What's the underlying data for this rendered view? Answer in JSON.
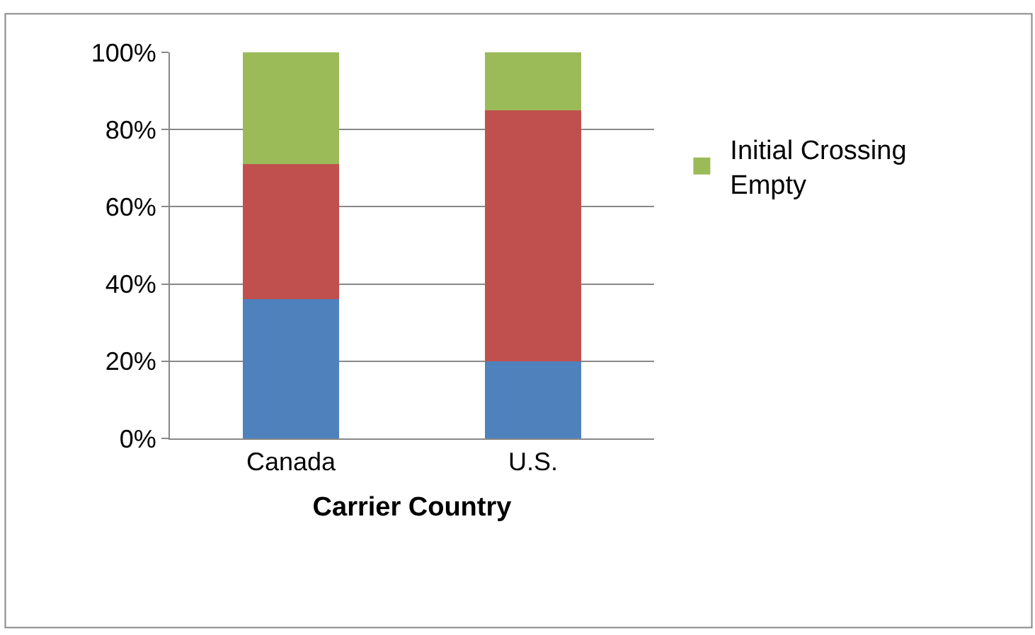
{
  "chart_data": {
    "type": "bar",
    "stacked": true,
    "xlabel": "Carrier Country",
    "categories": [
      "Canada",
      "U.S."
    ],
    "series": [
      {
        "color": "#4f81bd",
        "values": [
          36,
          20
        ]
      },
      {
        "color": "#c0504d",
        "values": [
          35,
          65
        ]
      },
      {
        "name": "Initial Crossing Empty",
        "color": "#9bbb59",
        "values": [
          29,
          15
        ]
      }
    ],
    "ylim": [
      0,
      100
    ],
    "yticks": [
      {
        "value": 0,
        "label": "0%"
      },
      {
        "value": 20,
        "label": "20%"
      },
      {
        "value": 40,
        "label": "40%"
      },
      {
        "value": 60,
        "label": "60%"
      },
      {
        "value": 80,
        "label": "80%"
      },
      {
        "value": 100,
        "label": "100%"
      }
    ],
    "grid": "y",
    "legend": "right"
  }
}
